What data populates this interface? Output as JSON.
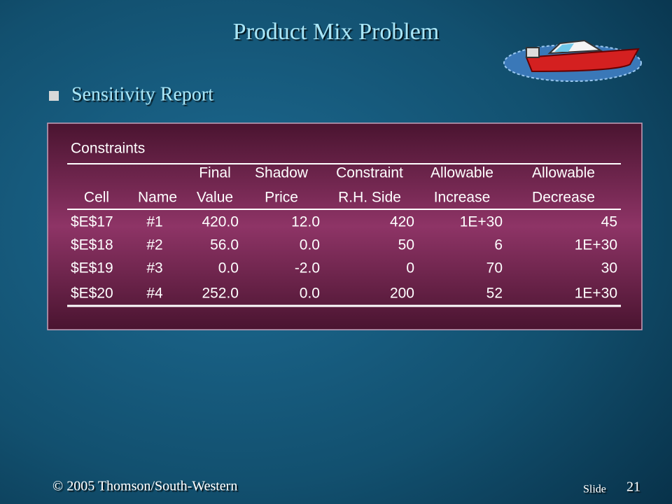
{
  "header": {
    "title": "Product Mix Problem",
    "bullet": "Sensitivity Report"
  },
  "table": {
    "section": "Constraints",
    "columns": [
      [
        "Cell"
      ],
      [
        "Name"
      ],
      [
        "Final",
        "Value"
      ],
      [
        "Shadow",
        "Price"
      ],
      [
        "Constraint",
        "R.H. Side"
      ],
      [
        "Allowable",
        "Increase"
      ],
      [
        "Allowable",
        "Decrease"
      ]
    ],
    "rows": [
      [
        "$E$17",
        "#1",
        "420.0",
        "12.0",
        "420",
        "1E+30",
        "45"
      ],
      [
        "$E$18",
        "#2",
        "56.0",
        "0.0",
        "50",
        "6",
        "1E+30"
      ],
      [
        "$E$19",
        "#3",
        "0.0",
        "-2.0",
        "0",
        "70",
        "30"
      ],
      [
        "$E$20",
        "#4",
        "252.0",
        "0.0",
        "200",
        "52",
        "1E+30"
      ]
    ]
  },
  "footer": {
    "copyright": "© 2005  Thomson/South-Western",
    "slide_label": "Slide",
    "slide_number": "21"
  }
}
